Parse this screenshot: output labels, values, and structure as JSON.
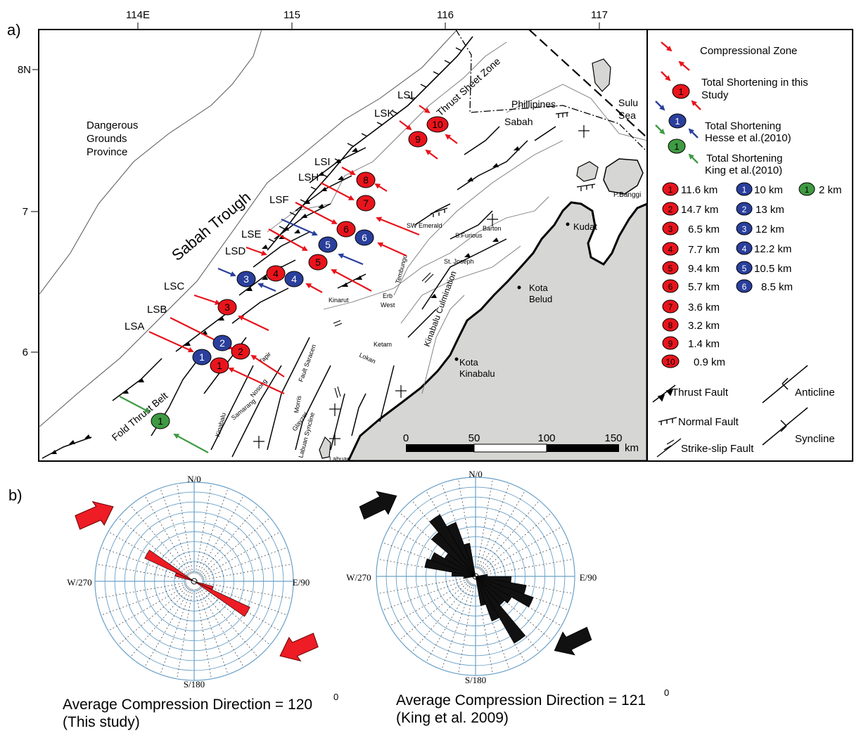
{
  "panel_labels": {
    "a": "a)",
    "b": "b)"
  },
  "map": {
    "lon_ticks": [
      "114E",
      "115",
      "116",
      "117"
    ],
    "lat_ticks": [
      "8N",
      "7",
      "6"
    ],
    "place_labels": {
      "dangerous_grounds": [
        "Dangerous",
        "Grounds",
        "Province"
      ],
      "sabah_trough": "Sabah Trough",
      "thrust_sheet_zone": "Thrust Sheet Zone",
      "fold_thrust_belt": "Fold Thrust Belt",
      "phillipines": "Phillipines",
      "sabah": "Sabah",
      "sulu_sea": [
        "Sulu",
        "Sea"
      ],
      "p_banggi": "P.Banggi",
      "kudat": "Kudat",
      "kota_belud": [
        "Kota",
        "Belud"
      ],
      "kota_kinabalu": [
        "Kota",
        "Kinabalu"
      ],
      "kinabalu_culmination": "Kinabalu Culmination",
      "sw_emerald": "SW Emerald",
      "barton": "Barton",
      "s_furious": "S.Furious",
      "st_joseph": "St. Joseph",
      "tembungo": "Tembungo",
      "kinarut": "Kinarut",
      "erb_west": [
        "Erb",
        "West"
      ],
      "ketam": "Ketam",
      "lokan": "Lokan",
      "fault_saracen": "Fault Saracen",
      "morris": "Morris",
      "glayzer": "Glayzer",
      "labuan_syncline": "Labuan Syncline",
      "labuan": "Labuan",
      "samarang": "Samarang",
      "kinabalu": "Kinabalu",
      "nosong": "Nosong",
      "tapir": "Tapir"
    },
    "section_labels": [
      "LSL",
      "LSK",
      "LSI",
      "LSH",
      "LSF",
      "LSE",
      "LSD",
      "LSC",
      "LSB",
      "LSA"
    ],
    "markers": {
      "red": [
        "1",
        "2",
        "3",
        "4",
        "5",
        "6",
        "7",
        "8",
        "9",
        "10"
      ],
      "blue": [
        "1",
        "2",
        "3",
        "4",
        "5",
        "6"
      ],
      "green": [
        "1"
      ]
    },
    "scale_bar": {
      "ticks": [
        "0",
        "50",
        "100",
        "150"
      ],
      "unit": "km"
    }
  },
  "legend": {
    "compressional_zone": "Compressional Zone",
    "total_this_study": [
      "Total Shortening in this",
      "Study"
    ],
    "total_hesse": [
      "Total Shortening",
      "Hesse et al.(2010)"
    ],
    "total_king": [
      "Total Shortening",
      "King et al.(2010)"
    ],
    "red_values": [
      "11.6 km",
      "14.7 km",
      "6.5 km",
      "7.7 km",
      "9.4 km",
      "5.7 km",
      "3.6 km",
      "3.2 km",
      "1.4 km",
      "0.9 km"
    ],
    "blue_values": [
      "10 km",
      "13 km",
      "12 km",
      "12.2 km",
      "10.5 km",
      "8.5 km"
    ],
    "green_values": [
      "2 km"
    ],
    "thrust_fault": "Thrust Fault",
    "normal_fault": "Normal Fault",
    "strike_slip_fault": "Strike-slip Fault",
    "anticline": "Anticline",
    "syncline": "Syncline"
  },
  "rose_left": {
    "north": "N/0",
    "east": "E/90",
    "south": "S/180",
    "west": "W/270",
    "caption_main": "Average Compression Direction = 120",
    "caption_sup": "0",
    "caption_sub": "(This study)",
    "petal_color": "#ee1c24",
    "arrow_color": "#ee1c24",
    "mean_direction_deg": 120
  },
  "rose_right": {
    "north": "N/0",
    "east": "E/90",
    "south": "S/180",
    "west": "W/270",
    "caption_main": "Average Compression Direction = 121",
    "caption_sup": "0",
    "caption_sub": "(King et al. 2009)",
    "petal_color": "#111111",
    "arrow_color": "#111111",
    "mean_direction_deg": 121
  },
  "colors": {
    "red": "#e8141c",
    "blue": "#2a3f9c",
    "green": "#3f9a43",
    "land": "#d6d6d4",
    "grid": "#6aa0c8"
  }
}
